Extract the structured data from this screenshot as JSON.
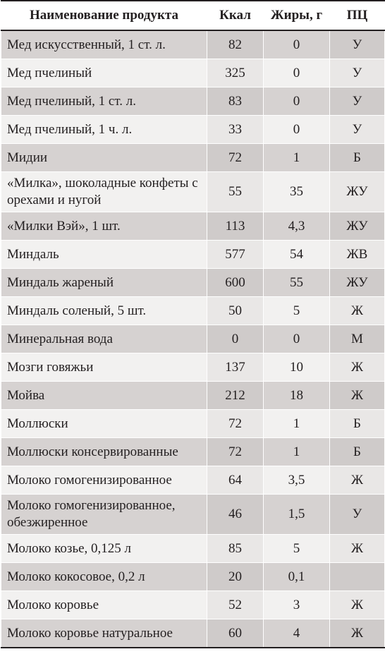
{
  "table": {
    "headers": [
      "Наименование продукта",
      "Ккал",
      "Жиры, г",
      "ПЦ"
    ],
    "rows": [
      [
        "Мед искусственный, 1 ст. л.",
        "82",
        "0",
        "У"
      ],
      [
        "Мед пчелиный",
        "325",
        "0",
        "У"
      ],
      [
        "Мед пчелиный, 1 ст. л.",
        "83",
        "0",
        "У"
      ],
      [
        "Мед пчелиный, 1 ч. л.",
        "33",
        "0",
        "У"
      ],
      [
        "Мидии",
        "72",
        "1",
        "Б"
      ],
      [
        "«Милка», шоколадные конфеты с орехами и нугой",
        "55",
        "35",
        "ЖУ"
      ],
      [
        "«Милки Вэй», 1 шт.",
        "113",
        "4,3",
        "ЖУ"
      ],
      [
        "Миндаль",
        "577",
        "54",
        "ЖВ"
      ],
      [
        "Миндаль жареный",
        "600",
        "55",
        "ЖУ"
      ],
      [
        "Миндаль соленый, 5 шт.",
        "50",
        "5",
        "Ж"
      ],
      [
        "Минеральная вода",
        "0",
        "0",
        "М"
      ],
      [
        "Мозги говяжьи",
        "137",
        "10",
        "Ж"
      ],
      [
        "Мойва",
        "212",
        "18",
        "Ж"
      ],
      [
        "Моллюски",
        "72",
        "1",
        "Б"
      ],
      [
        "Моллюски консервированные",
        "72",
        "1",
        "Б"
      ],
      [
        "Молоко гомогенизированное",
        "64",
        "3,5",
        "Ж"
      ],
      [
        "Молоко гомогенизированное, обезжиренное",
        "46",
        "1,5",
        "У"
      ],
      [
        "Молоко козье, 0,125 л",
        "85",
        "5",
        "Ж"
      ],
      [
        "Молоко кокосовое, 0,2 л",
        "20",
        "0,1",
        ""
      ],
      [
        "Молоко коровье",
        "52",
        "3",
        "Ж"
      ],
      [
        "Молоко коровье натуральное",
        "60",
        "4",
        "Ж"
      ]
    ]
  }
}
